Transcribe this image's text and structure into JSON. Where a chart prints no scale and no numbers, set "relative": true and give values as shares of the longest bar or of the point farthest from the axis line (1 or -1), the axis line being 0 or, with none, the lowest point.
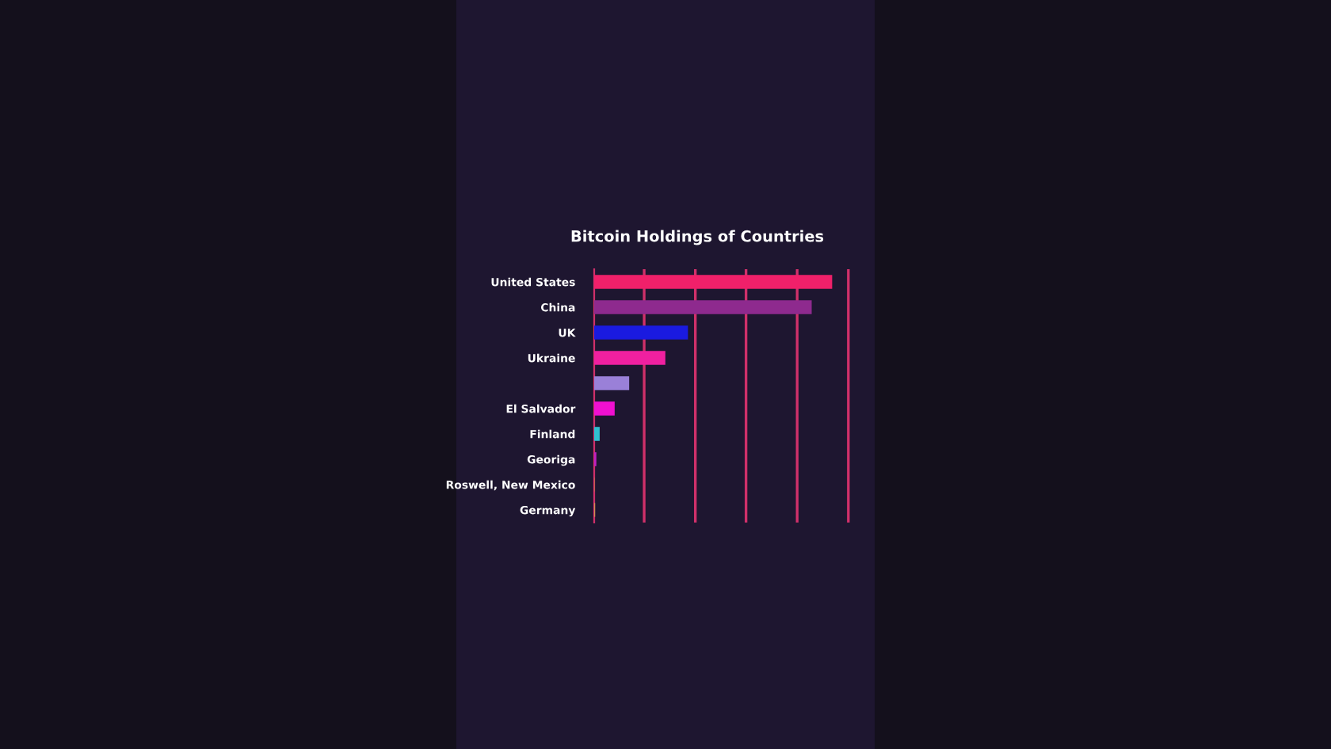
{
  "chart_data": {
    "type": "bar",
    "orientation": "horizontal",
    "relative": true,
    "title": "Bitcoin Holdings of Countries",
    "categories": [
      "United States",
      "China",
      "UK",
      "Ukraine",
      null,
      "El Salvador",
      "Finland",
      "Georiga",
      "Roswell, New Mexico",
      "Germany"
    ],
    "values": [
      1,
      0.914,
      0.394,
      0.299,
      0.147,
      0.086,
      0.023,
      0.009,
      0.002,
      0.004
    ],
    "colors": [
      "#f0206a",
      "#8e2a8e",
      "#1a1ae0",
      "#f020a0",
      "#9a80d8",
      "#f010d0",
      "#30c0d0",
      "#c020c0",
      "#c08040",
      "#d09050"
    ],
    "ref_lines": [
      {
        "axis": "x",
        "value": 0.21,
        "color": "#d0306a"
      },
      {
        "axis": "x",
        "value": 0.425,
        "color": "#d0306a"
      },
      {
        "axis": "x",
        "value": 0.638,
        "color": "#d0306a"
      },
      {
        "axis": "x",
        "value": 0.853,
        "color": "#d0306a"
      },
      {
        "axis": "x",
        "value": 1.068,
        "color": "#d0306a"
      }
    ]
  }
}
